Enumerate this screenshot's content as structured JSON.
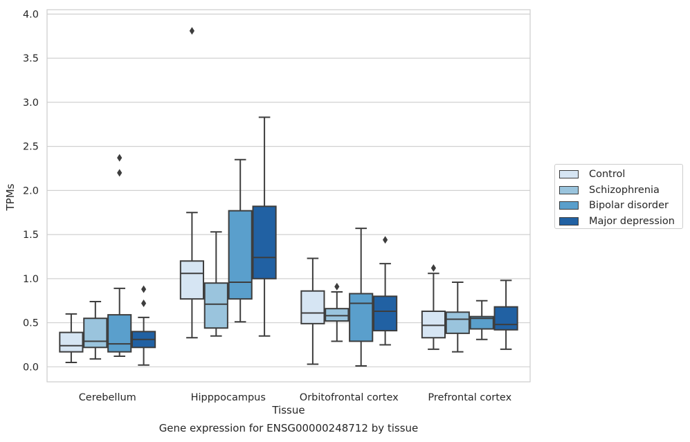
{
  "chart_data": {
    "type": "boxplot",
    "title": "",
    "caption": "Gene expression for ENSG00000248712 by tissue",
    "xlabel": "Tissue",
    "ylabel": "TPMs",
    "ylim": [
      -0.17,
      4.05
    ],
    "yticks": [
      0.0,
      0.5,
      1.0,
      1.5,
      2.0,
      2.5,
      3.0,
      3.5,
      4.0
    ],
    "ytick_labels": [
      "0.0",
      "0.5",
      "1.0",
      "1.5",
      "2.0",
      "2.5",
      "3.0",
      "3.5",
      "4.0"
    ],
    "grid": "horizontal",
    "legend_position": "outside-right",
    "categories": [
      "Cerebellum",
      "Hipppocampus",
      "Orbitofrontal cortex",
      "Prefrontal cortex"
    ],
    "series": [
      {
        "name": "Control",
        "color": "#d6e5f3",
        "boxes": [
          {
            "whisker_low": 0.05,
            "q1": 0.17,
            "median": 0.24,
            "q3": 0.39,
            "whisker_high": 0.6,
            "outliers": []
          },
          {
            "whisker_low": 0.33,
            "q1": 0.77,
            "median": 1.06,
            "q3": 1.2,
            "whisker_high": 1.75,
            "outliers": [
              3.81
            ]
          },
          {
            "whisker_low": 0.03,
            "q1": 0.49,
            "median": 0.61,
            "q3": 0.86,
            "whisker_high": 1.23,
            "outliers": []
          },
          {
            "whisker_low": 0.2,
            "q1": 0.33,
            "median": 0.47,
            "q3": 0.63,
            "whisker_high": 1.06,
            "outliers": [
              1.12
            ]
          }
        ]
      },
      {
        "name": "Schizophrenia",
        "color": "#9ac4dd",
        "boxes": [
          {
            "whisker_low": 0.09,
            "q1": 0.22,
            "median": 0.29,
            "q3": 0.55,
            "whisker_high": 0.74,
            "outliers": []
          },
          {
            "whisker_low": 0.35,
            "q1": 0.44,
            "median": 0.71,
            "q3": 0.95,
            "whisker_high": 1.53,
            "outliers": []
          },
          {
            "whisker_low": 0.29,
            "q1": 0.52,
            "median": 0.58,
            "q3": 0.66,
            "whisker_high": 0.85,
            "outliers": [
              0.91
            ]
          },
          {
            "whisker_low": 0.17,
            "q1": 0.38,
            "median": 0.54,
            "q3": 0.62,
            "whisker_high": 0.96,
            "outliers": []
          }
        ]
      },
      {
        "name": "Bipolar disorder",
        "color": "#5a9fcc",
        "boxes": [
          {
            "whisker_low": 0.12,
            "q1": 0.17,
            "median": 0.26,
            "q3": 0.59,
            "whisker_high": 0.89,
            "outliers": [
              2.2,
              2.37
            ]
          },
          {
            "whisker_low": 0.51,
            "q1": 0.77,
            "median": 0.96,
            "q3": 1.77,
            "whisker_high": 2.35,
            "outliers": []
          },
          {
            "whisker_low": 0.01,
            "q1": 0.29,
            "median": 0.72,
            "q3": 0.83,
            "whisker_high": 1.57,
            "outliers": []
          },
          {
            "whisker_low": 0.31,
            "q1": 0.43,
            "median": 0.55,
            "q3": 0.57,
            "whisker_high": 0.75,
            "outliers": []
          }
        ]
      },
      {
        "name": "Major depression",
        "color": "#2161a3",
        "boxes": [
          {
            "whisker_low": 0.02,
            "q1": 0.22,
            "median": 0.31,
            "q3": 0.4,
            "whisker_high": 0.56,
            "outliers": [
              0.72,
              0.88
            ]
          },
          {
            "whisker_low": 0.35,
            "q1": 1.0,
            "median": 1.24,
            "q3": 1.82,
            "whisker_high": 2.83,
            "outliers": []
          },
          {
            "whisker_low": 0.25,
            "q1": 0.41,
            "median": 0.63,
            "q3": 0.8,
            "whisker_high": 1.17,
            "outliers": [
              1.44
            ]
          },
          {
            "whisker_low": 0.2,
            "q1": 0.42,
            "median": 0.48,
            "q3": 0.68,
            "whisker_high": 0.98,
            "outliers": []
          }
        ]
      }
    ]
  }
}
